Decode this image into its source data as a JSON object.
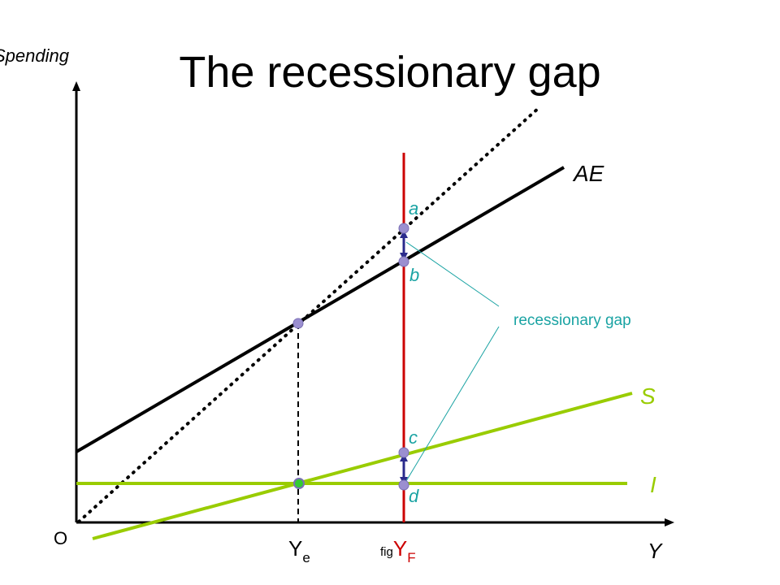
{
  "title": "The recessionary gap",
  "axis": {
    "y_label": "Spending",
    "x_label": "Y",
    "origin_label": "O"
  },
  "curves": {
    "ae": {
      "label": "AE",
      "color": "#000000"
    },
    "s": {
      "label": "S",
      "color": "#99cc00"
    },
    "i": {
      "label": "I",
      "color": "#99cc00"
    },
    "full_employment": {
      "color": "#cc0000"
    },
    "forty_five": {
      "color": "#000000"
    }
  },
  "points": {
    "a": "a",
    "b": "b",
    "c": "c",
    "d": "d"
  },
  "x_markers": {
    "ye": {
      "main": "Y",
      "sub": "e"
    },
    "yf": {
      "prefix": "fig",
      "main": "Y",
      "sub": "F",
      "color": "#cc0000"
    }
  },
  "annotation": {
    "text": "recessionary gap",
    "color": "#1aa3a3"
  },
  "colors": {
    "point_fill": "#9b8fd0",
    "equilibrium_point": "#33cc33",
    "gap_arrow": "#2b2b8c",
    "point_label": "#1aa3a3"
  }
}
